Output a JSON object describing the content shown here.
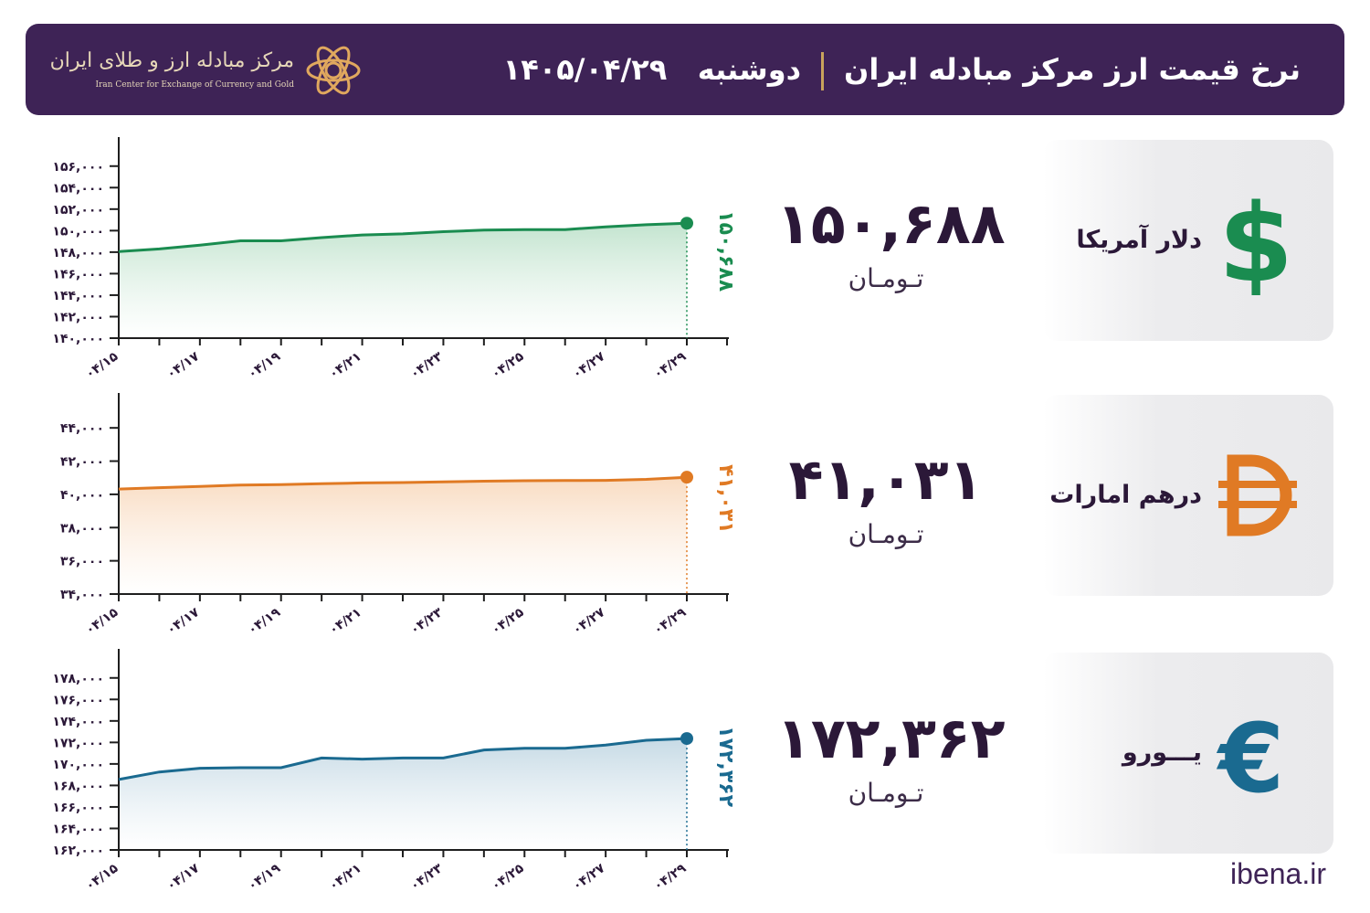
{
  "header": {
    "title": "نرخ قیمت ارز مرکز مبادله ایران",
    "day": "دوشنبه",
    "date": "۱۴۰۵/۰۴/۲۹",
    "logo_fa": "مرکز مبادله ارز و طلای ایران",
    "logo_en": "Iran Center for Exchange of Currency and Gold"
  },
  "cards": [
    {
      "name": "دلار آمریکا",
      "icon": "dollar-sign-icon",
      "value": "۱۵۰,۶۸۸",
      "unit": "تـومـان",
      "color": "#1a8c50"
    },
    {
      "name": "درهم امارات",
      "icon": "dirham-sign-icon",
      "value": "۴۱,۰۳۱",
      "unit": "تـومـان",
      "color": "#e07a24"
    },
    {
      "name": "یـــورو",
      "icon": "euro-sign-icon",
      "value": "۱۷۲,۳۶۲",
      "unit": "تـومـان",
      "color": "#1a6a90"
    }
  ],
  "footer": {
    "site": "ibena.ir"
  },
  "chart_data": [
    {
      "type": "area",
      "series": [
        {
          "name": "دلار آمریکا",
          "color": "#1a8c50",
          "fill_top": "#c3e4cf",
          "values": [
            148050,
            148300,
            148650,
            149050,
            149050,
            149350,
            149600,
            149700,
            149900,
            150050,
            150100,
            150100,
            150350,
            150550,
            150688
          ]
        }
      ],
      "x": [
        "04/15",
        "04/16",
        "04/17",
        "04/18",
        "04/19",
        "04/20",
        "04/21",
        "04/22",
        "04/23",
        "04/24",
        "04/25",
        "04/26",
        "04/27",
        "04/28",
        "04/29"
      ],
      "x_tick_labels": [
        "۰۴/۱۵",
        "۰۴/۱۷",
        "۰۴/۱۹",
        "۰۴/۲۱",
        "۰۴/۲۳",
        "۰۴/۲۵",
        "۰۴/۲۷",
        "۰۴/۲۹"
      ],
      "y_tick_labels": [
        "۱۴۰,۰۰۰",
        "۱۴۲,۰۰۰",
        "۱۴۴,۰۰۰",
        "۱۴۶,۰۰۰",
        "۱۴۸,۰۰۰",
        "۱۵۰,۰۰۰",
        "۱۵۲,۰۰۰",
        "۱۵۴,۰۰۰",
        "۱۵۶,۰۰۰"
      ],
      "ylim": [
        140000,
        157000
      ],
      "last_label": "۱۵۰,۶۸۸"
    },
    {
      "type": "area",
      "series": [
        {
          "name": "درهم امارات",
          "color": "#e07a24",
          "fill_top": "#f9dcc2",
          "values": [
            40320,
            40400,
            40480,
            40560,
            40590,
            40640,
            40690,
            40710,
            40750,
            40790,
            40820,
            40830,
            40840,
            40900,
            41031
          ]
        }
      ],
      "x": [
        "04/15",
        "04/16",
        "04/17",
        "04/18",
        "04/19",
        "04/20",
        "04/21",
        "04/22",
        "04/23",
        "04/24",
        "04/25",
        "04/26",
        "04/27",
        "04/28",
        "04/29"
      ],
      "x_tick_labels": [
        "۰۴/۱۵",
        "۰۴/۱۷",
        "۰۴/۱۹",
        "۰۴/۲۱",
        "۰۴/۲۳",
        "۰۴/۲۵",
        "۰۴/۲۷",
        "۰۴/۲۹"
      ],
      "y_tick_labels": [
        "۳۴,۰۰۰",
        "۳۶,۰۰۰",
        "۳۸,۰۰۰",
        "۴۰,۰۰۰",
        "۴۲,۰۰۰",
        "۴۴,۰۰۰"
      ],
      "ylim": [
        34000,
        45000
      ],
      "last_label": "۴۱,۰۳۱"
    },
    {
      "type": "area",
      "series": [
        {
          "name": "یورو",
          "color": "#1a6a90",
          "fill_top": "#c6dae5",
          "values": [
            168550,
            169250,
            169600,
            169650,
            169650,
            170550,
            170450,
            170550,
            170550,
            171300,
            171450,
            171450,
            171750,
            172200,
            172362
          ]
        }
      ],
      "x": [
        "04/15",
        "04/16",
        "04/17",
        "04/18",
        "04/19",
        "04/20",
        "04/21",
        "04/22",
        "04/23",
        "04/24",
        "04/25",
        "04/26",
        "04/27",
        "04/28",
        "04/29"
      ],
      "x_tick_labels": [
        "۰۴/۱۵",
        "۰۴/۱۷",
        "۰۴/۱۹",
        "۰۴/۲۱",
        "۰۴/۲۳",
        "۰۴/۲۵",
        "۰۴/۲۷",
        "۰۴/۲۹"
      ],
      "y_tick_labels": [
        "۱۶۲,۰۰۰",
        "۱۶۴,۰۰۰",
        "۱۶۶,۰۰۰",
        "۱۶۸,۰۰۰",
        "۱۷۰,۰۰۰",
        "۱۷۲,۰۰۰",
        "۱۷۴,۰۰۰",
        "۱۷۶,۰۰۰",
        "۱۷۸,۰۰۰"
      ],
      "ylim": [
        162000,
        179000
      ],
      "last_label": "۱۷۲,۳۶۲"
    }
  ]
}
